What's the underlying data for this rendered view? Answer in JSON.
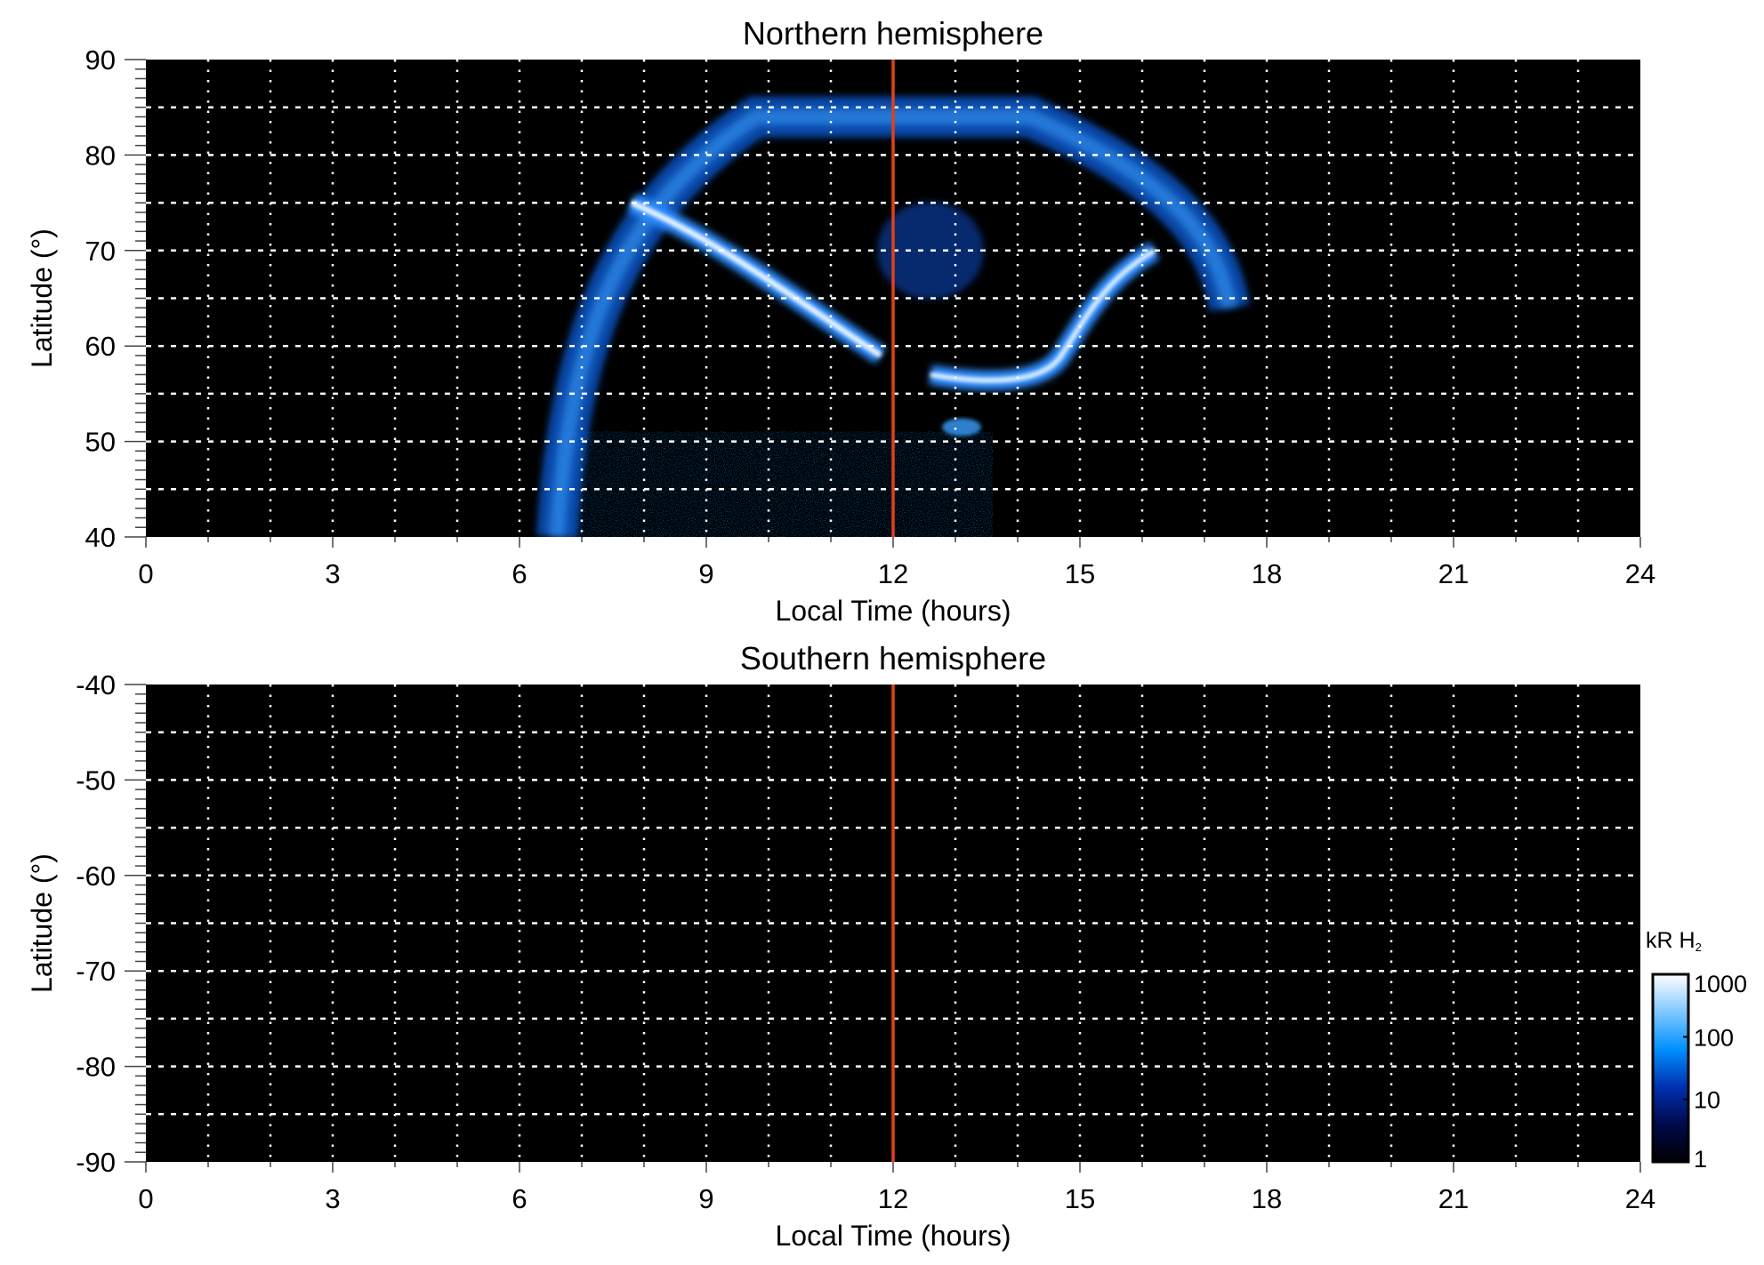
{
  "chart_data": [
    {
      "type": "heatmap",
      "title": "Northern hemisphere",
      "xlabel": "Local Time (hours)",
      "ylabel": "Latitude (°)",
      "xlim": [
        0,
        24
      ],
      "ylim": [
        40,
        90
      ],
      "xticks": [
        "0",
        "3",
        "6",
        "9",
        "12",
        "15",
        "18",
        "21",
        "24"
      ],
      "yticks": [
        "40",
        "50",
        "60",
        "70",
        "80",
        "90"
      ],
      "grid": true,
      "marker_line_x": 12,
      "marker_line_color": "#e0401a",
      "has_emission": true
    },
    {
      "type": "heatmap",
      "title": "Southern hemisphere",
      "xlabel": "Local Time (hours)",
      "ylabel": "Latitude (°)",
      "xlim": [
        0,
        24
      ],
      "ylim": [
        -90,
        -40
      ],
      "xticks": [
        "0",
        "3",
        "6",
        "9",
        "12",
        "15",
        "18",
        "21",
        "24"
      ],
      "yticks": [
        "-90",
        "-80",
        "-70",
        "-60",
        "-50",
        "-40"
      ],
      "grid": true,
      "marker_line_x": 12,
      "marker_line_color": "#e0401a",
      "has_emission": false
    }
  ],
  "colorbar": {
    "label": "kR H",
    "label_sub": "2",
    "scale": "log",
    "ticks": [
      "1",
      "10",
      "100",
      "1000"
    ],
    "range": [
      1,
      1000
    ],
    "colors": [
      "#000000",
      "#000a4a",
      "#0030b0",
      "#0090ff",
      "#80c8ff",
      "#ffffff"
    ]
  }
}
